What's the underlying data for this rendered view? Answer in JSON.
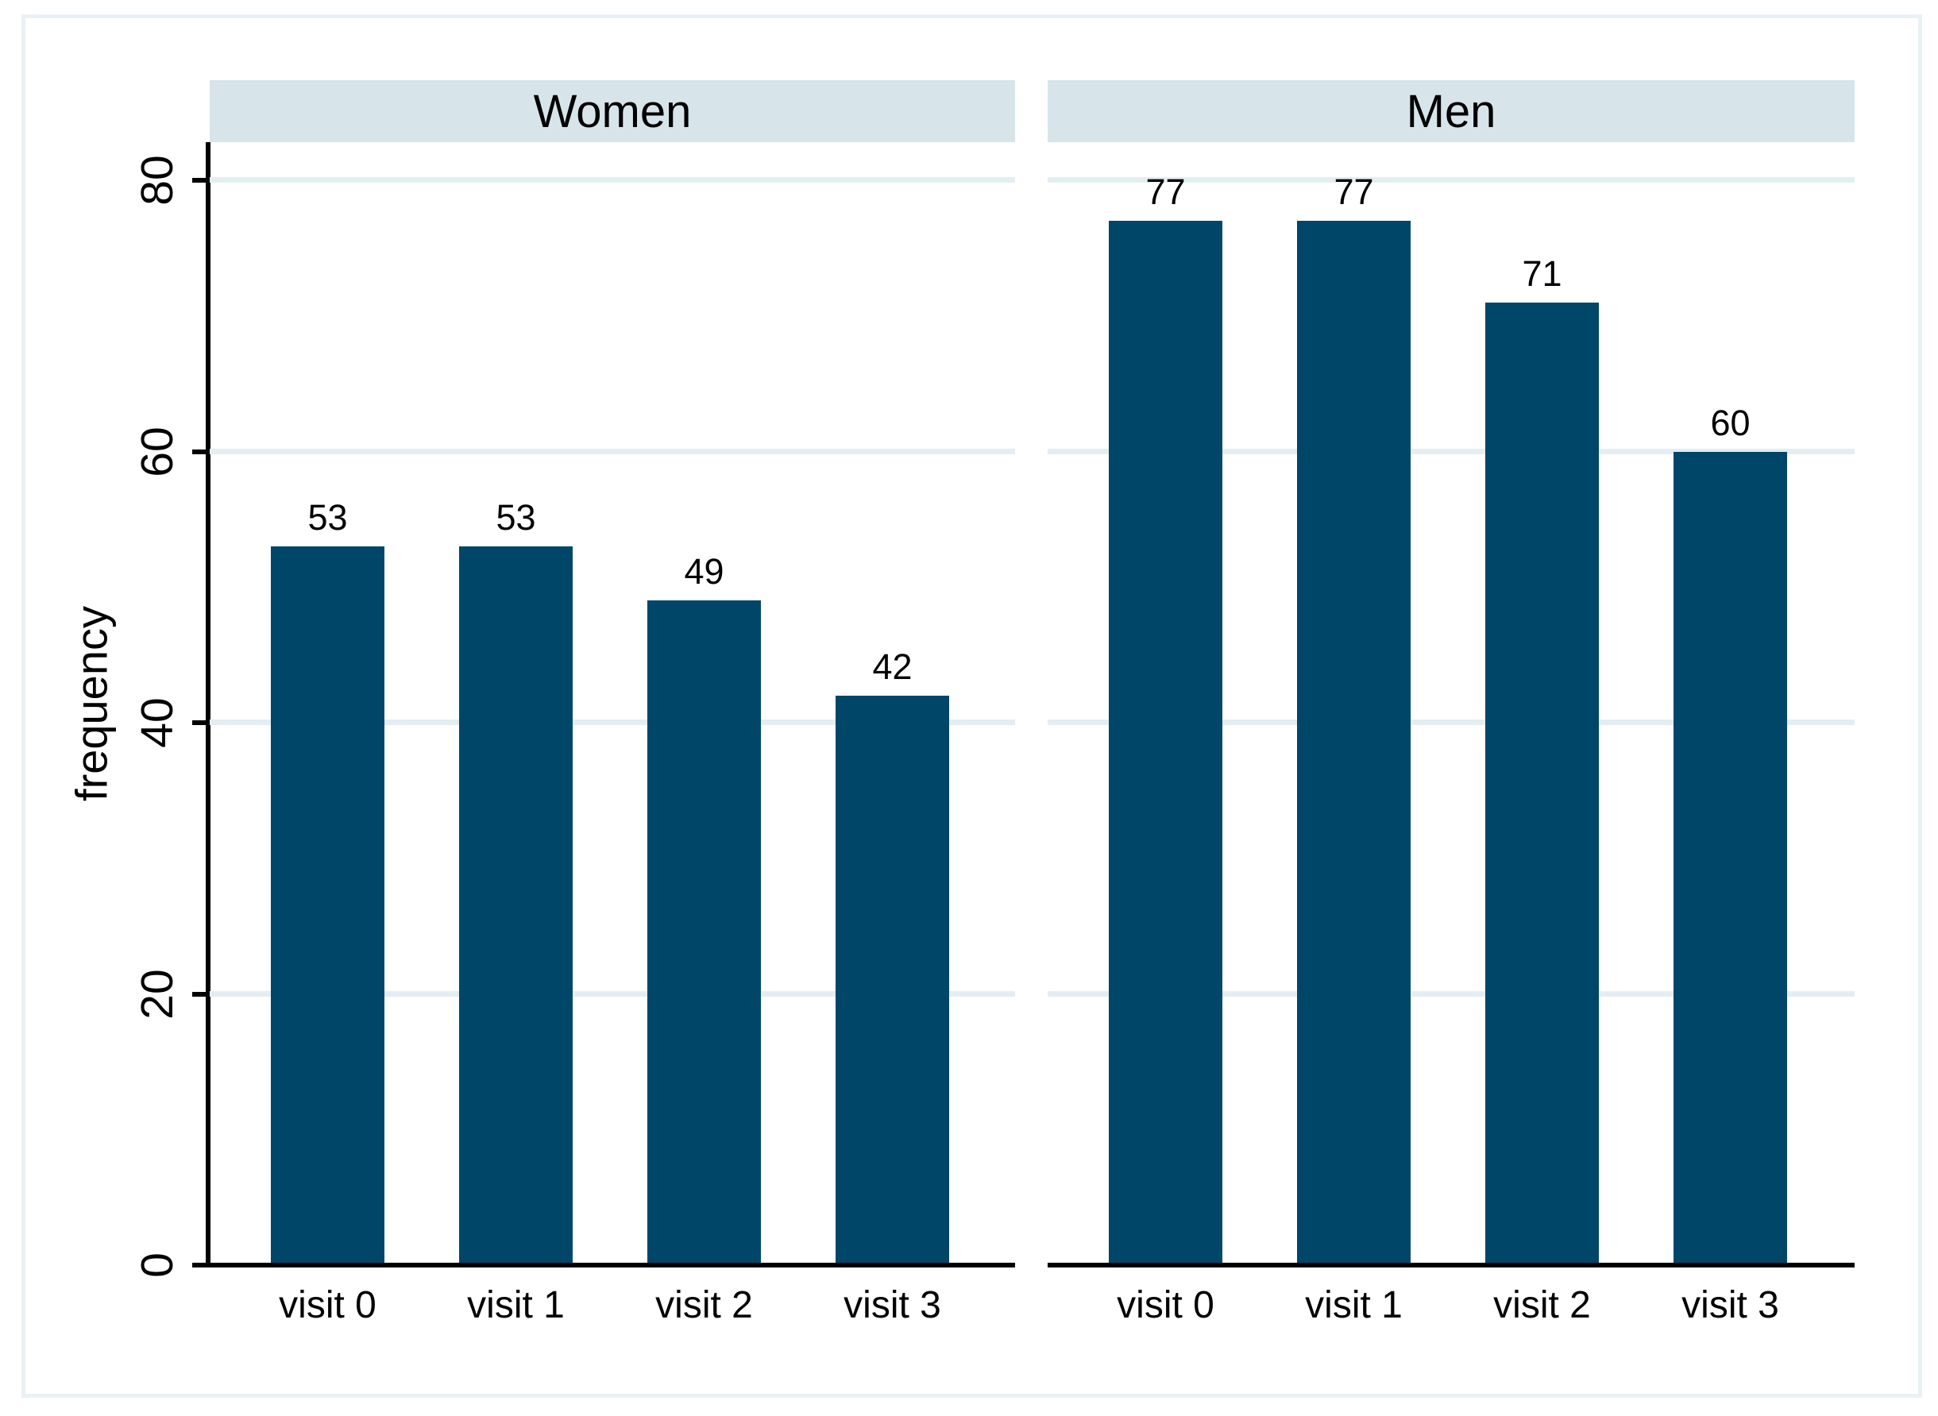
{
  "chart_data": {
    "type": "bar",
    "title": "",
    "ylabel": "frequency",
    "categories": [
      "visit 0",
      "visit 1",
      "visit 2",
      "visit 3"
    ],
    "panels": [
      {
        "label": "Women",
        "values": [
          53,
          53,
          49,
          42
        ]
      },
      {
        "label": "Men",
        "values": [
          77,
          77,
          71,
          60
        ]
      }
    ],
    "yticks": [
      0,
      20,
      40,
      60,
      80
    ],
    "ylim": [
      0,
      82.8
    ],
    "grid": true,
    "bar_labels": true,
    "legend": "none"
  },
  "colors": {
    "bar": "#004669",
    "header_bg": "#d7e5eb",
    "gridline": "#e4eef2",
    "frame": "#e9f1f5",
    "axis": "#000000"
  }
}
